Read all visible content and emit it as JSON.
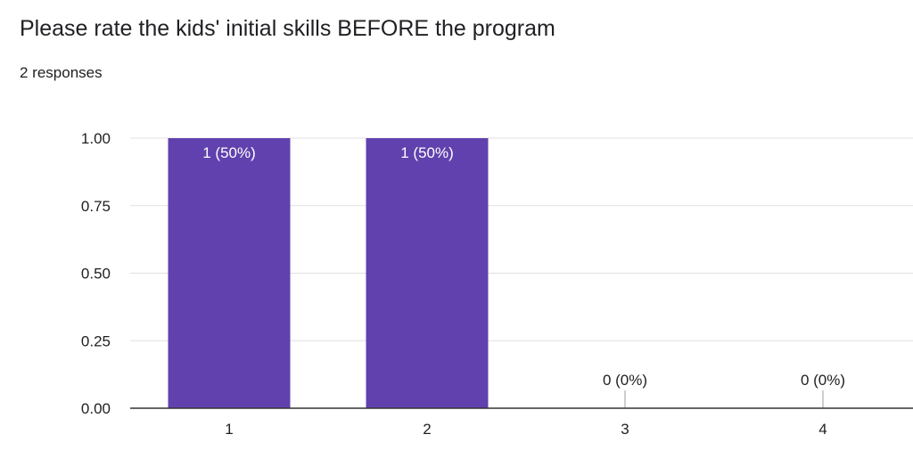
{
  "header": {
    "title": "Please rate the kids' initial skills BEFORE the program",
    "responses": "2 responses"
  },
  "colors": {
    "bar": "#6041ae",
    "grid": "#e0e0e0",
    "axis": "#333333",
    "inside_label": "#ffffff",
    "outside_label": "#202124"
  },
  "chart_data": {
    "type": "bar",
    "categories": [
      "1",
      "2",
      "3",
      "4"
    ],
    "values": [
      1,
      1,
      0,
      0
    ],
    "data_labels": [
      "1 (50%)",
      "1 (50%)",
      "0 (0%)",
      "0 (0%)"
    ],
    "ylim": [
      0,
      1
    ],
    "y_ticks": [
      "0.00",
      "0.25",
      "0.50",
      "0.75",
      "1.00"
    ],
    "grid": true,
    "title": "",
    "xlabel": "",
    "ylabel": ""
  }
}
